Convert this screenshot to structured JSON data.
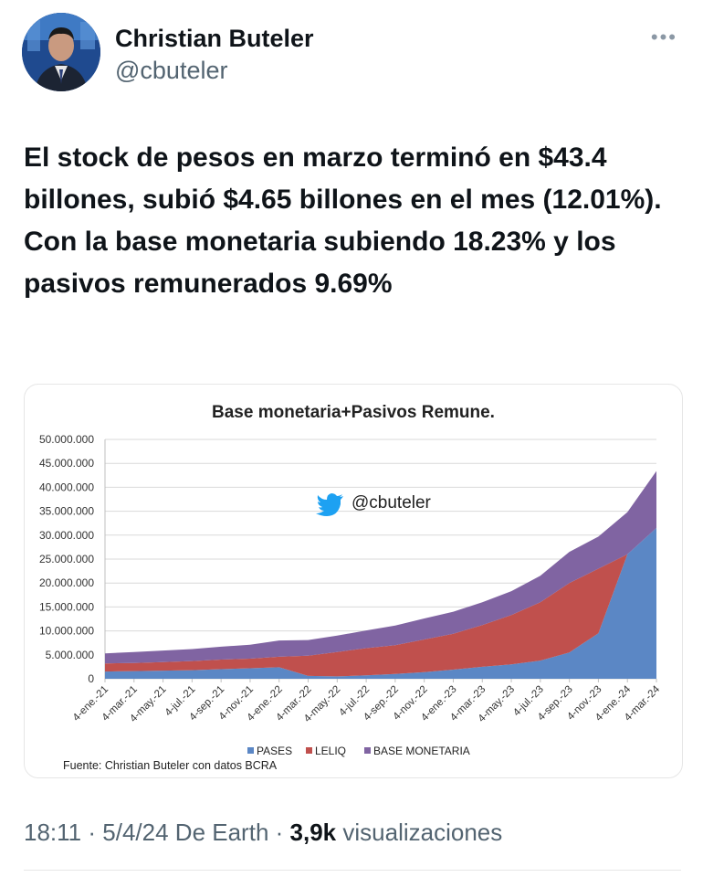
{
  "tweet": {
    "author_name": "Christian Buteler",
    "author_handle": "@cbuteler",
    "more_icon": "more-horizontal-icon",
    "text_lines": [
      "El stock de pesos en marzo terminó en $43.4 billones, subió $4.65 billones en el mes (12.01%).",
      "Con la base monetaria subiendo 18.23% y los pasivos remunerados 9.69%"
    ],
    "time": "18:11",
    "date": "5/4/24",
    "source": "De Earth",
    "views_count": "3,9k",
    "views_label": "visualizaciones"
  },
  "chart_data": {
    "type": "area",
    "title": "Base monetaria+Pasivos Remune.",
    "watermark": "@cbuteler",
    "source_note": "Fuente: Christian Buteler con datos BCRA",
    "ylim": [
      0,
      50000000
    ],
    "y_ticks": [
      "0",
      "5.000.000",
      "10.000.000",
      "15.000.000",
      "20.000.000",
      "25.000.000",
      "30.000.000",
      "35.000.000",
      "40.000.000",
      "45.000.000",
      "50.000.000"
    ],
    "x_ticks": [
      "4-ene.-21",
      "4-mar.-21",
      "4-may.-21",
      "4-jul.-21",
      "4-sep.-21",
      "4-nov.-21",
      "4-ene.-22",
      "4-mar.-22",
      "4-may.-22",
      "4-jul.-22",
      "4-sep.-22",
      "4-nov.-22",
      "4-ene.-23",
      "4-mar.-23",
      "4-may.-23",
      "4-jul.-23",
      "4-sep.-23",
      "4-nov.-23",
      "4-ene.-24",
      "4-mar.-24"
    ],
    "stacked": true,
    "grid": true,
    "legend_position": "bottom",
    "series": [
      {
        "name": "PASES",
        "color": "#5b87c5",
        "values": [
          1500000,
          1600000,
          1700000,
          1800000,
          2000000,
          2200000,
          2400000,
          600000,
          500000,
          700000,
          1000000,
          1400000,
          1900000,
          2500000,
          3000000,
          3800000,
          5500000,
          9500000,
          26000000,
          31500000
        ]
      },
      {
        "name": "LELIQ",
        "color": "#c0504d",
        "values": [
          1700000,
          1700000,
          1800000,
          1900000,
          2000000,
          2000000,
          2200000,
          4200000,
          5100000,
          5700000,
          6000000,
          6800000,
          7500000,
          8700000,
          10300000,
          12200000,
          14500000,
          13500000,
          0,
          0
        ]
      },
      {
        "name": "BASE MONETARIA",
        "color": "#8064a2",
        "values": [
          2100000,
          2300000,
          2400000,
          2500000,
          2700000,
          2900000,
          3400000,
          3300000,
          3400000,
          3700000,
          4100000,
          4400000,
          4600000,
          4800000,
          5000000,
          5500000,
          6500000,
          6700000,
          8800000,
          11900000
        ]
      }
    ]
  }
}
